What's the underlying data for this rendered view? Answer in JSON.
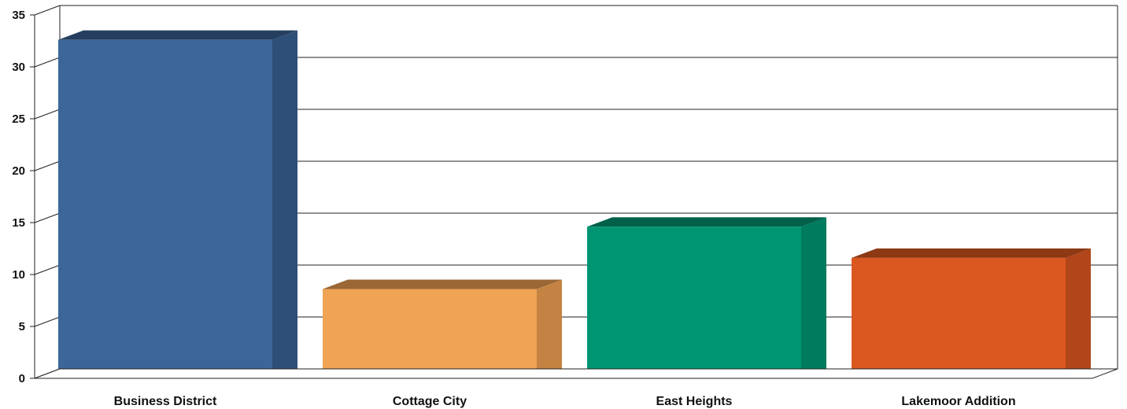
{
  "chart_data": {
    "type": "bar",
    "categories": [
      "Business District",
      "Cottage City",
      "East Heights",
      "Lakemoor Addition"
    ],
    "values": [
      32.6,
      8.6,
      14.6,
      11.6
    ],
    "ylim": [
      0,
      35
    ],
    "yticks": [
      0,
      5,
      10,
      15,
      20,
      25,
      30,
      35
    ],
    "grid": true,
    "legend": "none",
    "title": "",
    "xlabel": "",
    "ylabel": "",
    "colors": {
      "front": [
        "#3b6697",
        "#efa353",
        "#009572",
        "#db5720"
      ],
      "side": [
        "#2e4f78",
        "#c48342",
        "#007b5d",
        "#b0461a"
      ],
      "top": [
        "#263f60",
        "#9a6735",
        "#00604a",
        "#8c3914"
      ]
    }
  }
}
